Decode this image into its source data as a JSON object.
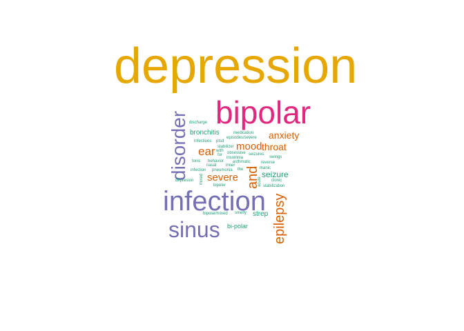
{
  "cloud": {
    "words": {
      "depression": "depression",
      "bipolar": "bipolar",
      "disorder": "disorder",
      "infection": "infection",
      "sinus": "sinus",
      "epilepsy": "epilepsy",
      "and": "and",
      "severe": "severe",
      "ear": "ear",
      "mood": "mood",
      "throat": "throat",
      "anxiety": "anxiety",
      "seizure": "seizure",
      "bronchitis": "bronchitis",
      "strep": "strep",
      "bipolar_hyphen": "bi-polar",
      "discharge": "discharge",
      "medication": "medication",
      "episodes_severe": "episodes/severe",
      "infections": "infections",
      "ptsd": "ptsd",
      "stabilizer": "stabilizer",
      "with": "with",
      "for": "for",
      "obsessive": "obsessive",
      "seizures": "seizures",
      "insomnia": "insomnia",
      "swings": "swings",
      "tonic": "tonic",
      "behavior": "behavior",
      "asthmatic": "asthmatic",
      "reverse": "reverse",
      "nasal": "nasal",
      "inner": "inner",
      "manic": "manic",
      "infection_small": "infection",
      "pneumonia": "pneumonia",
      "the": "the",
      "depresion": "depresion",
      "mixed": "mixed",
      "clonic": "clonic",
      "acute": "acute",
      "bipoler": "bipoler",
      "stabilization": "stabilization",
      "bipolarmixed": "bipolar/mixed",
      "smelly": "smelly"
    },
    "colors": {
      "gold": "#E6A800",
      "pink": "#E0287F",
      "purple": "#7570B3",
      "orange": "#D95F02",
      "teal": "#1B9E77"
    }
  }
}
